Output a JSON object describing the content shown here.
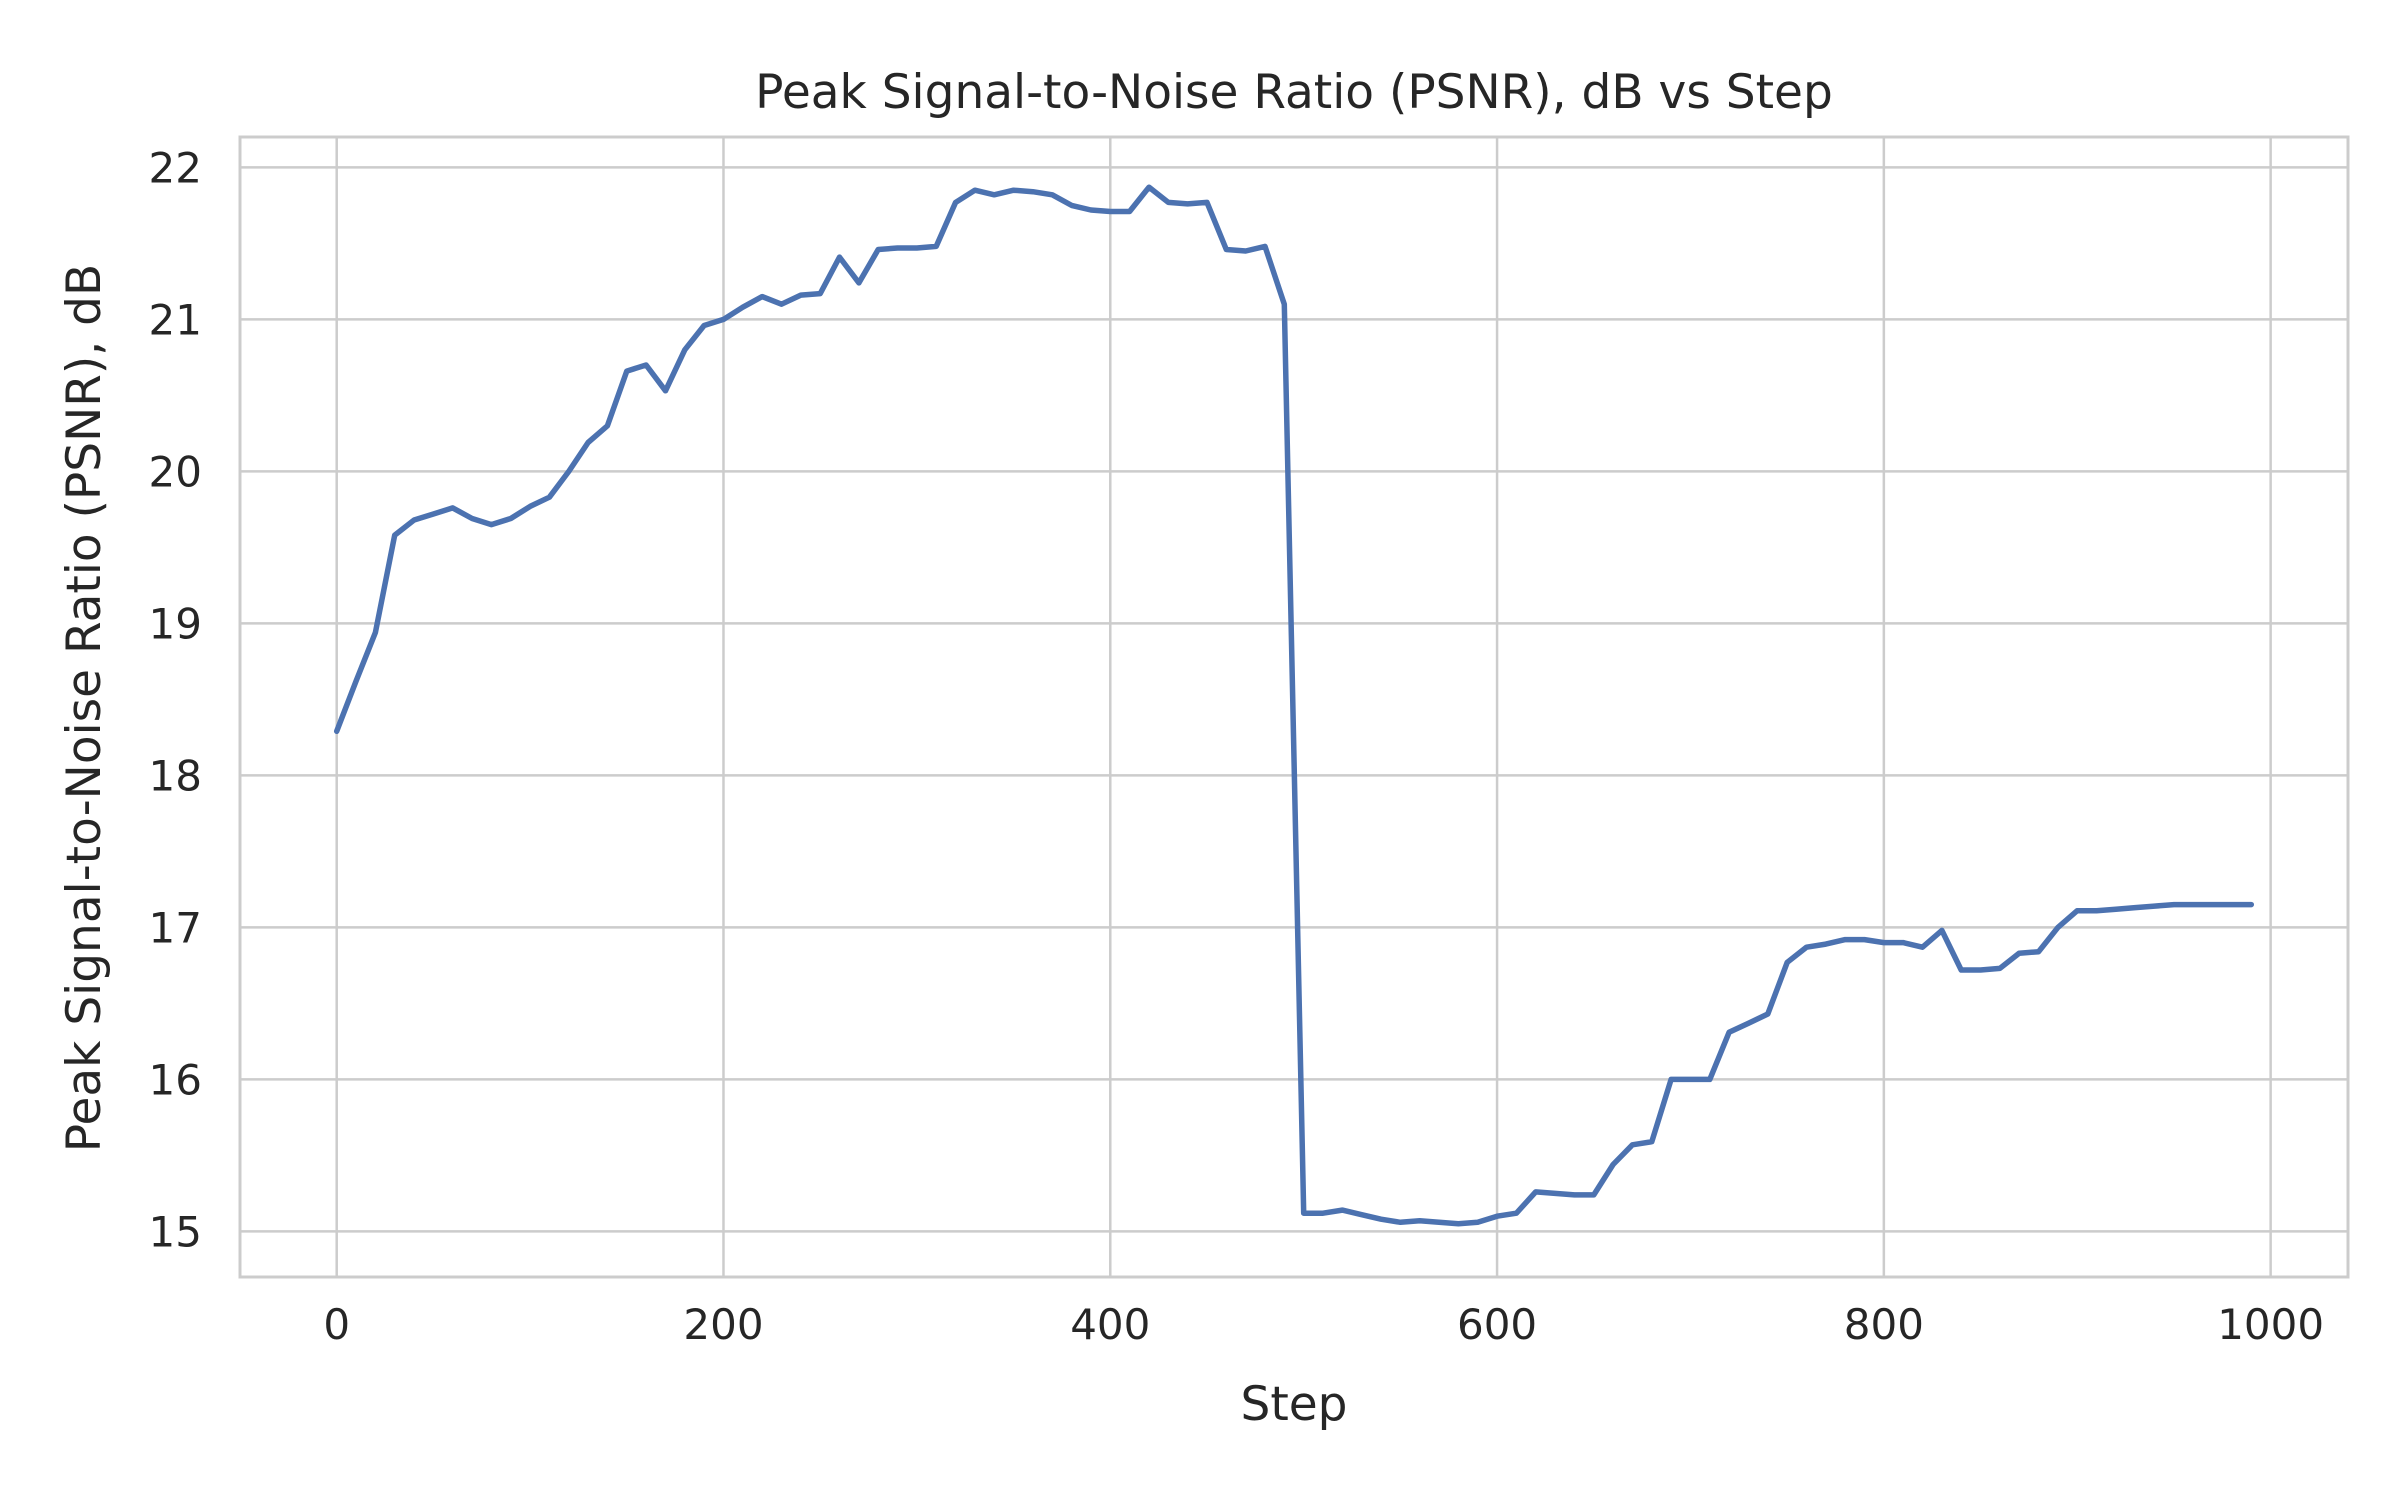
{
  "chart_data": {
    "type": "line",
    "title": "Peak Signal-to-Noise Ratio (PSNR), dB vs Step",
    "xlabel": "Step",
    "ylabel": "Peak Signal-to-Noise Ratio (PSNR), dB",
    "xlim": [
      -50,
      1040
    ],
    "ylim": [
      14.7,
      22.2
    ],
    "xticks": [
      0,
      200,
      400,
      600,
      800,
      1000
    ],
    "yticks": [
      15,
      16,
      17,
      18,
      19,
      20,
      21,
      22
    ],
    "xtick_labels": [
      "0",
      "200",
      "400",
      "600",
      "800",
      "1000"
    ],
    "ytick_labels": [
      "15",
      "16",
      "17",
      "18",
      "19",
      "20",
      "21",
      "22"
    ],
    "grid": true,
    "series": [
      {
        "color": "#4c72b0",
        "x": [
          0,
          10,
          20,
          30,
          40,
          50,
          60,
          70,
          80,
          90,
          100,
          110,
          120,
          130,
          140,
          150,
          160,
          170,
          180,
          190,
          200,
          210,
          220,
          230,
          240,
          250,
          260,
          270,
          280,
          290,
          300,
          310,
          320,
          330,
          340,
          350,
          360,
          370,
          380,
          390,
          400,
          410,
          420,
          430,
          440,
          450,
          460,
          470,
          480,
          490,
          500,
          510,
          520,
          530,
          540,
          550,
          560,
          570,
          580,
          590,
          600,
          610,
          620,
          630,
          640,
          650,
          660,
          670,
          680,
          690,
          700,
          710,
          720,
          730,
          740,
          750,
          760,
          770,
          780,
          790,
          800,
          810,
          820,
          830,
          840,
          850,
          860,
          870,
          880,
          890,
          900,
          910,
          920,
          930,
          940,
          950,
          960,
          970,
          980,
          990
        ],
        "y": [
          18.29,
          18.62,
          18.94,
          19.58,
          19.68,
          19.72,
          19.76,
          19.69,
          19.65,
          19.69,
          19.77,
          19.83,
          20.0,
          20.19,
          20.3,
          20.66,
          20.7,
          20.53,
          20.8,
          20.96,
          21.0,
          21.08,
          21.15,
          21.1,
          21.16,
          21.17,
          21.41,
          21.24,
          21.46,
          21.47,
          21.47,
          21.48,
          21.77,
          21.85,
          21.82,
          21.85,
          21.84,
          21.82,
          21.75,
          21.72,
          21.71,
          21.71,
          21.87,
          21.77,
          21.76,
          21.77,
          21.46,
          21.45,
          21.48,
          21.1,
          15.12,
          15.12,
          15.14,
          15.11,
          15.08,
          15.06,
          15.07,
          15.06,
          15.05,
          15.06,
          15.1,
          15.12,
          15.26,
          15.25,
          15.24,
          15.24,
          15.44,
          15.57,
          15.59,
          16.0,
          16.0,
          16.0,
          16.31,
          16.37,
          16.43,
          16.77,
          16.87,
          16.89,
          16.92,
          16.92,
          16.9,
          16.9,
          16.87,
          16.98,
          16.72,
          16.72,
          16.73,
          16.83,
          16.84,
          17.0,
          17.11,
          17.11,
          17.12,
          17.13,
          17.14,
          17.15,
          17.15,
          17.15,
          17.15,
          17.15
        ]
      }
    ]
  }
}
